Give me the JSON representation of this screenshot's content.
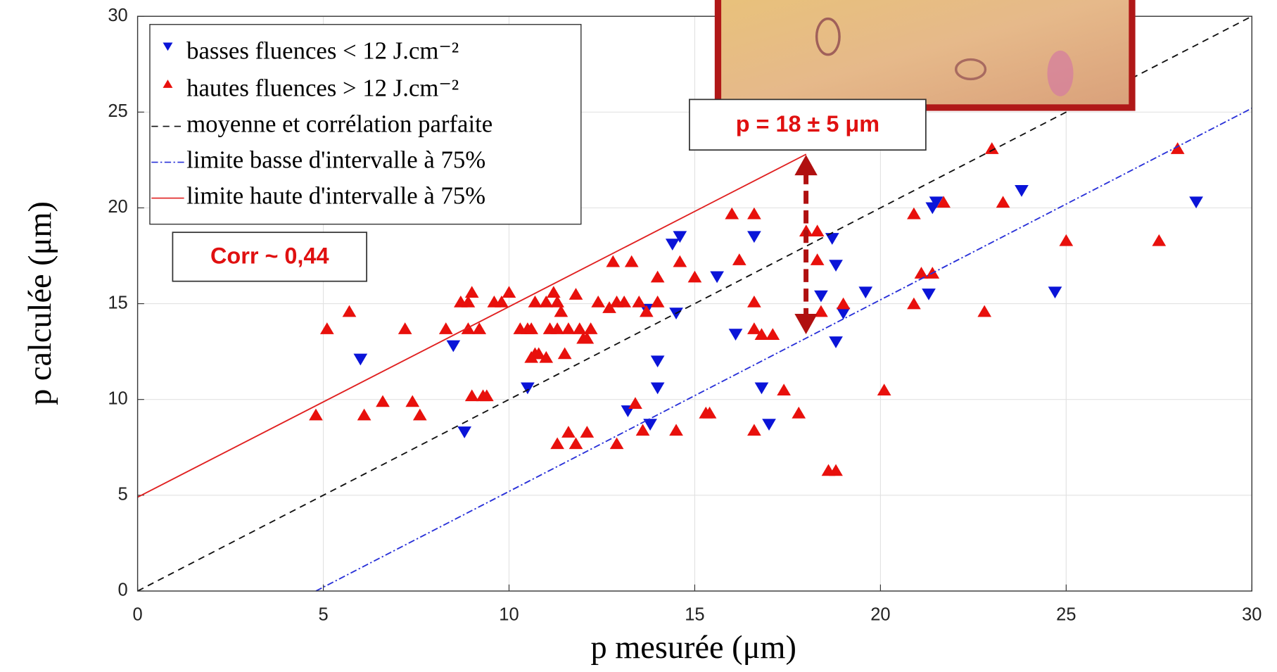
{
  "chart_data": {
    "type": "scatter",
    "xlabel": "p mesurée (μm)",
    "ylabel": "p calculée (μm)",
    "xlim": [
      0,
      30
    ],
    "ylim": [
      0,
      30
    ],
    "xticks": [
      0,
      5,
      10,
      15,
      20,
      25,
      30
    ],
    "yticks": [
      0,
      5,
      10,
      15,
      20,
      25,
      30
    ],
    "grid": true,
    "legend": "upper left",
    "annotations": [
      "Corr ~ 0,44",
      "p = 18 ± 5 μm"
    ],
    "series": [
      {
        "name": "basses fluences < 12 J.cm⁻²",
        "kind": "points",
        "marker": "v",
        "color": "#0a14d8",
        "x": [
          6.0,
          8.5,
          8.8,
          10.5,
          13.2,
          13.7,
          13.8,
          14.0,
          14.0,
          14.4,
          14.5,
          14.6,
          15.6,
          16.1,
          16.6,
          16.8,
          17.0,
          18.4,
          18.7,
          18.8,
          18.8,
          19.0,
          19.6,
          21.3,
          21.4,
          21.5,
          23.8,
          24.7,
          28.5
        ],
        "values": [
          12.1,
          12.8,
          8.3,
          10.6,
          9.4,
          14.7,
          8.7,
          12.0,
          10.6,
          18.1,
          14.5,
          18.5,
          16.4,
          13.4,
          18.5,
          10.6,
          8.7,
          15.4,
          18.4,
          17.0,
          13.0,
          14.5,
          15.6,
          15.5,
          20.0,
          20.3,
          20.9,
          15.6,
          20.3
        ]
      },
      {
        "name": "hautes fluences > 12 J.cm⁻²",
        "kind": "points",
        "marker": "^",
        "color": "#e8100c",
        "x": [
          4.8,
          5.1,
          5.7,
          6.1,
          6.6,
          7.2,
          7.4,
          7.6,
          8.3,
          8.7,
          8.9,
          8.9,
          9.0,
          9.0,
          9.2,
          9.3,
          9.4,
          9.6,
          9.8,
          10.0,
          10.3,
          10.5,
          10.6,
          10.6,
          10.7,
          10.7,
          10.8,
          11.0,
          11.0,
          11.1,
          11.2,
          11.3,
          11.3,
          11.3,
          11.4,
          11.5,
          11.6,
          11.6,
          11.8,
          11.8,
          11.9,
          12.0,
          12.1,
          12.1,
          12.2,
          12.4,
          12.7,
          12.8,
          12.9,
          12.9,
          13.1,
          13.3,
          13.5,
          13.4,
          13.7,
          13.6,
          14.0,
          14.0,
          14.5,
          14.6,
          15.0,
          15.3,
          15.4,
          16.0,
          16.2,
          16.6,
          16.6,
          16.6,
          16.6,
          16.8,
          17.1,
          17.4,
          17.8,
          18.0,
          18.3,
          18.3,
          18.4,
          18.6,
          18.8,
          19.0,
          20.1,
          20.9,
          20.9,
          21.1,
          21.4,
          21.7,
          22.8,
          23.0,
          23.3,
          25.0,
          27.5,
          28.0
        ],
        "values": [
          9.2,
          13.7,
          14.6,
          9.2,
          9.9,
          13.7,
          9.9,
          9.2,
          13.7,
          15.1,
          15.1,
          13.7,
          15.6,
          10.2,
          13.7,
          10.2,
          10.2,
          15.1,
          15.1,
          15.6,
          13.7,
          13.7,
          13.7,
          12.2,
          15.1,
          12.4,
          12.4,
          12.2,
          15.1,
          13.7,
          15.6,
          15.1,
          13.7,
          7.7,
          14.6,
          12.4,
          13.7,
          8.3,
          15.5,
          7.7,
          13.7,
          13.2,
          8.3,
          13.2,
          13.7,
          15.1,
          14.8,
          17.2,
          15.1,
          7.7,
          15.1,
          17.2,
          15.1,
          9.8,
          14.6,
          8.4,
          15.1,
          16.4,
          8.4,
          17.2,
          16.4,
          9.3,
          9.3,
          19.7,
          17.3,
          19.7,
          15.1,
          13.7,
          8.4,
          13.4,
          13.4,
          10.5,
          9.3,
          18.8,
          18.8,
          17.3,
          14.6,
          6.3,
          6.3,
          15.0,
          10.5,
          15.0,
          19.7,
          16.6,
          16.6,
          20.3,
          14.6,
          23.1,
          20.3,
          18.3,
          18.3,
          23.1
        ]
      },
      {
        "name": "moyenne et corrélation parfaite",
        "kind": "line",
        "dash": "8,6",
        "color": "#111111",
        "x": [
          0,
          30
        ],
        "values": [
          0,
          30
        ]
      },
      {
        "name": "limite basse d'intervalle à 75%",
        "kind": "line",
        "dash": "8,3,2,3",
        "color": "#2830d8",
        "x": [
          4.8,
          30
        ],
        "values": [
          0,
          25.2
        ]
      },
      {
        "name": "limite haute d'intervalle à 75%",
        "kind": "line",
        "dash": "none",
        "color": "#e02020",
        "x": [
          0,
          18
        ],
        "values": [
          4.9,
          22.8
        ]
      }
    ]
  }
}
